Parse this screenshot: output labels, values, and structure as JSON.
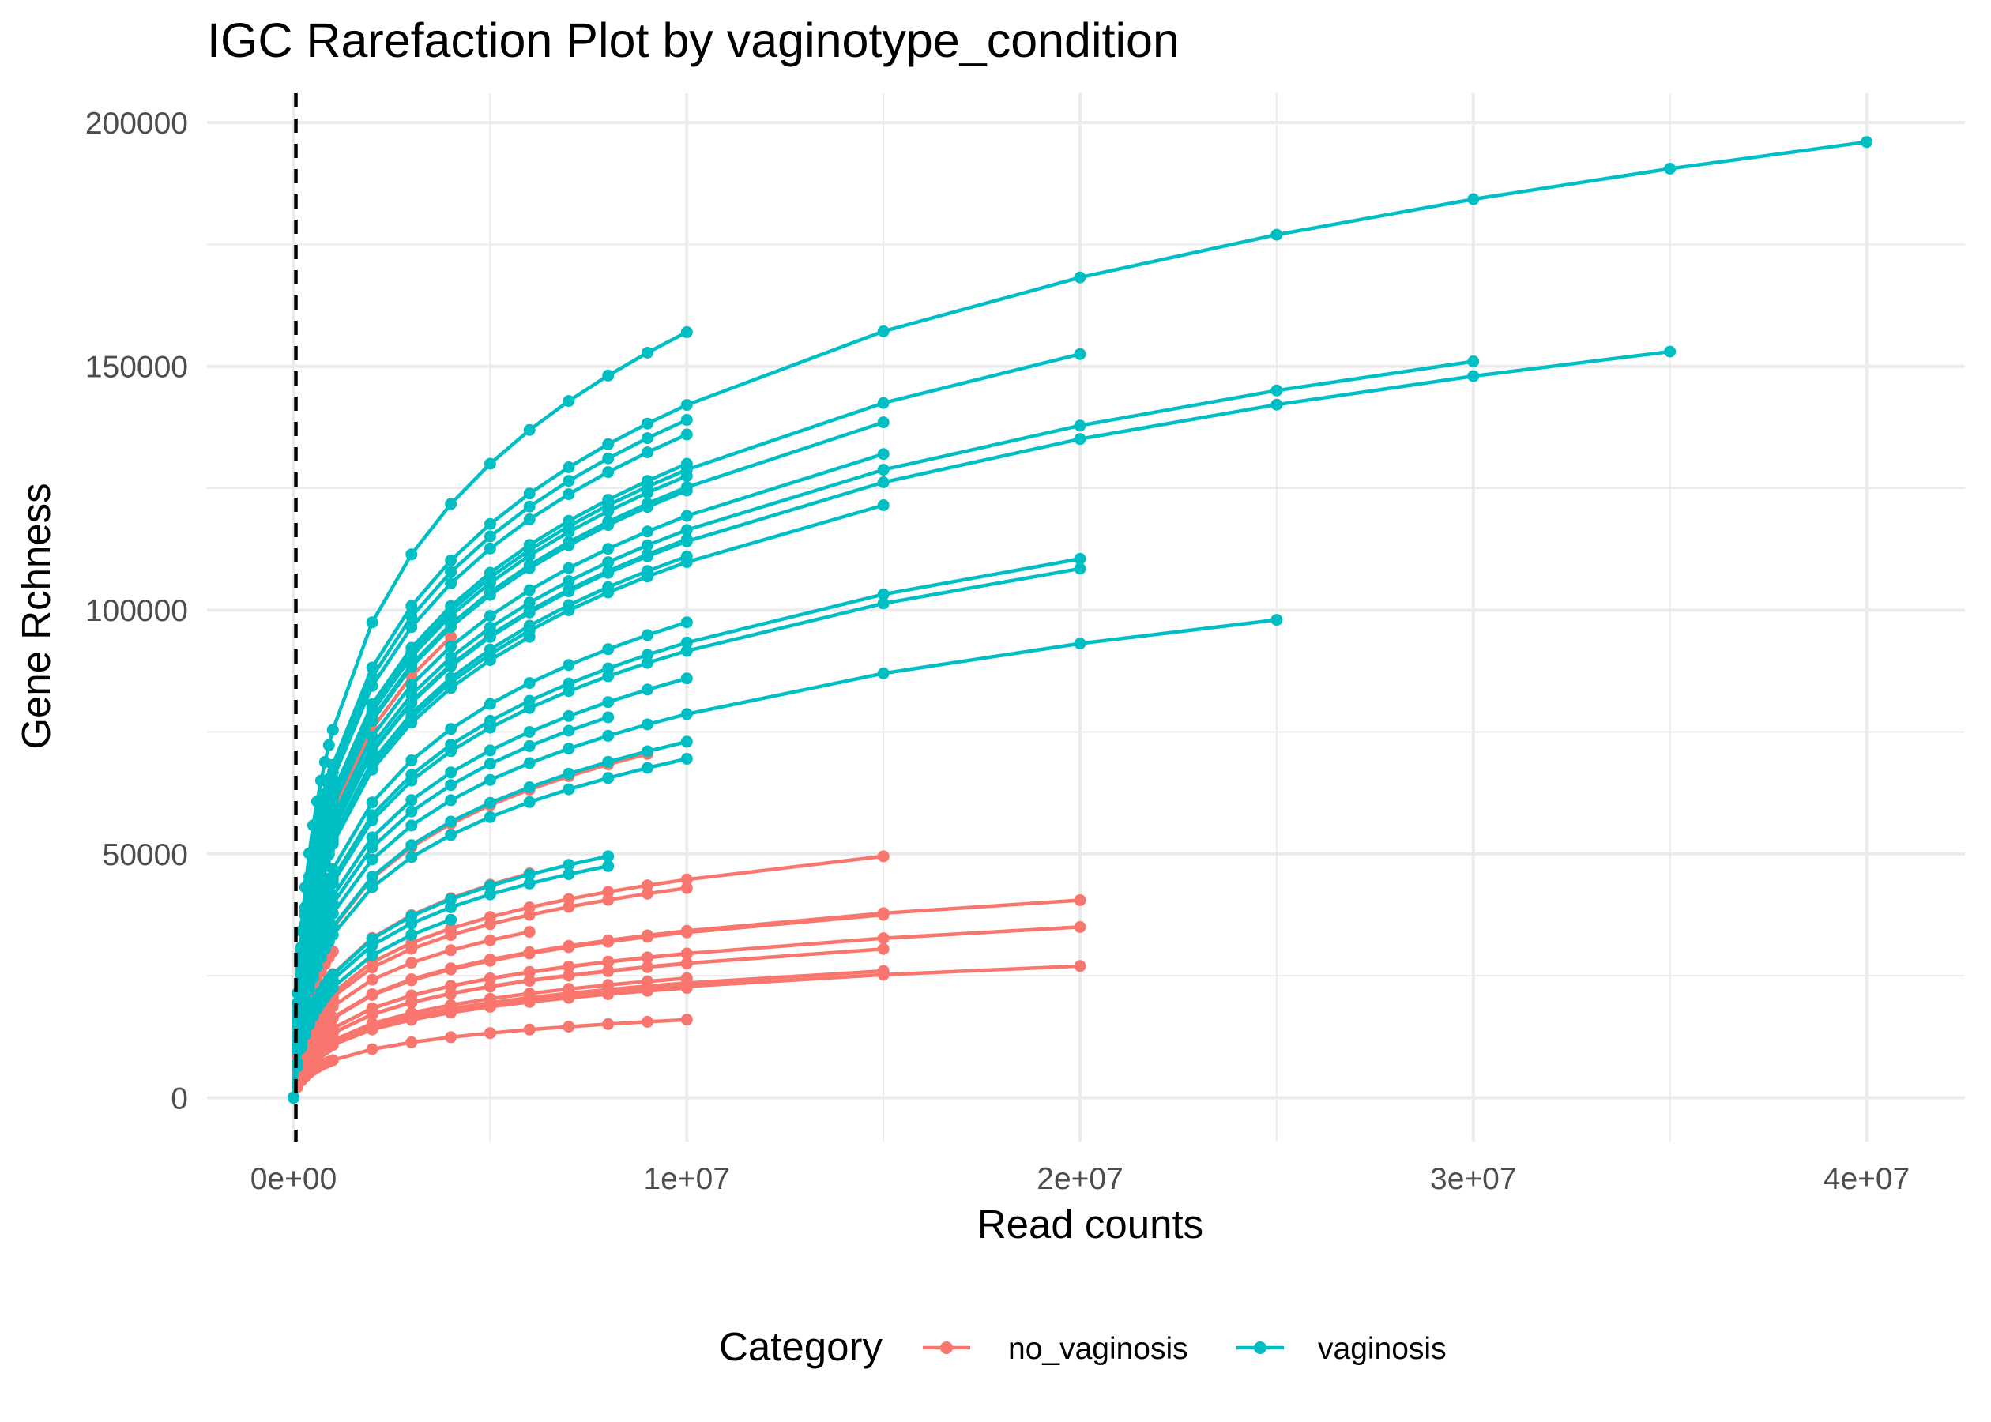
{
  "chart_data": {
    "type": "line",
    "title": "IGC Rarefaction Plot by vaginotype_condition",
    "xlabel": "Read counts",
    "ylabel": "Gene Rchness",
    "xlim": [
      -2200000,
      42500000
    ],
    "ylim": [
      -9000,
      206000
    ],
    "x_ticks": [
      0,
      10000000,
      20000000,
      30000000,
      40000000
    ],
    "x_tick_labels": [
      "0e+00",
      "1e+07",
      "2e+07",
      "3e+07",
      "4e+07"
    ],
    "y_ticks": [
      0,
      50000,
      100000,
      150000,
      200000
    ],
    "y_tick_labels": [
      "0",
      "50000",
      "100000",
      "150000",
      "200000"
    ],
    "grid": true,
    "vline_x": 0,
    "legend": {
      "title": "Category",
      "position": "bottom",
      "entries": [
        "no_vaginosis",
        "vaginosis"
      ]
    },
    "colors": {
      "no_vaginosis": "#F8766D",
      "vaginosis": "#00BFC4"
    },
    "x_steps": [
      0,
      100000,
      200000,
      300000,
      400000,
      500000,
      600000,
      700000,
      800000,
      900000,
      1000000,
      2000000,
      3000000,
      4000000,
      5000000,
      6000000,
      7000000,
      8000000,
      9000000,
      10000000,
      15000000,
      20000000,
      25000000,
      30000000,
      35000000,
      40000000
    ],
    "curves": [
      {
        "category": "vaginosis",
        "max_x": 40000000,
        "end_y": 196000
      },
      {
        "category": "vaginosis",
        "max_x": 10000000,
        "end_y": 157000
      },
      {
        "category": "vaginosis",
        "max_x": 35000000,
        "end_y": 153000
      },
      {
        "category": "vaginosis",
        "max_x": 30000000,
        "end_y": 151000
      },
      {
        "category": "vaginosis",
        "max_x": 20000000,
        "end_y": 152500
      },
      {
        "category": "vaginosis",
        "max_x": 15000000,
        "end_y": 138500
      },
      {
        "category": "vaginosis",
        "max_x": 15000000,
        "end_y": 132000
      },
      {
        "category": "vaginosis",
        "max_x": 10000000,
        "end_y": 139000
      },
      {
        "category": "vaginosis",
        "max_x": 10000000,
        "end_y": 136000
      },
      {
        "category": "vaginosis",
        "max_x": 10000000,
        "end_y": 130000
      },
      {
        "category": "vaginosis",
        "max_x": 10000000,
        "end_y": 127500
      },
      {
        "category": "vaginosis",
        "max_x": 10000000,
        "end_y": 124500
      },
      {
        "category": "vaginosis",
        "max_x": 15000000,
        "end_y": 121500
      },
      {
        "category": "vaginosis",
        "max_x": 10000000,
        "end_y": 114500
      },
      {
        "category": "vaginosis",
        "max_x": 10000000,
        "end_y": 111000
      },
      {
        "category": "vaginosis",
        "max_x": 20000000,
        "end_y": 110500
      },
      {
        "category": "vaginosis",
        "max_x": 20000000,
        "end_y": 108500
      },
      {
        "category": "vaginosis",
        "max_x": 25000000,
        "end_y": 98000
      },
      {
        "category": "vaginosis",
        "max_x": 10000000,
        "end_y": 97500
      },
      {
        "category": "vaginosis",
        "max_x": 6000000,
        "end_y": 94500
      },
      {
        "category": "vaginosis",
        "max_x": 10000000,
        "end_y": 86000
      },
      {
        "category": "vaginosis",
        "max_x": 8000000,
        "end_y": 78000
      },
      {
        "category": "vaginosis",
        "max_x": 10000000,
        "end_y": 73000
      },
      {
        "category": "vaginosis",
        "max_x": 10000000,
        "end_y": 69500
      },
      {
        "category": "vaginosis",
        "max_x": 8000000,
        "end_y": 49500
      },
      {
        "category": "vaginosis",
        "max_x": 8000000,
        "end_y": 47500
      },
      {
        "category": "vaginosis",
        "max_x": 4000000,
        "end_y": 36500
      },
      {
        "category": "no_vaginosis",
        "max_x": 4000000,
        "end_y": 94500
      },
      {
        "category": "no_vaginosis",
        "max_x": 9000000,
        "end_y": 70500
      },
      {
        "category": "no_vaginosis",
        "max_x": 15000000,
        "end_y": 49500
      },
      {
        "category": "no_vaginosis",
        "max_x": 6000000,
        "end_y": 46000
      },
      {
        "category": "no_vaginosis",
        "max_x": 10000000,
        "end_y": 43000
      },
      {
        "category": "no_vaginosis",
        "max_x": 20000000,
        "end_y": 40500
      },
      {
        "category": "no_vaginosis",
        "max_x": 6000000,
        "end_y": 34000
      },
      {
        "category": "no_vaginosis",
        "max_x": 15000000,
        "end_y": 37500
      },
      {
        "category": "no_vaginosis",
        "max_x": 20000000,
        "end_y": 35000
      },
      {
        "category": "no_vaginosis",
        "max_x": 15000000,
        "end_y": 30500
      },
      {
        "category": "no_vaginosis",
        "max_x": 10000000,
        "end_y": 29500
      },
      {
        "category": "no_vaginosis",
        "max_x": 10000000,
        "end_y": 27500
      },
      {
        "category": "no_vaginosis",
        "max_x": 20000000,
        "end_y": 27000
      },
      {
        "category": "no_vaginosis",
        "max_x": 15000000,
        "end_y": 26000
      },
      {
        "category": "no_vaginosis",
        "max_x": 10000000,
        "end_y": 24500
      },
      {
        "category": "no_vaginosis",
        "max_x": 10000000,
        "end_y": 22500
      },
      {
        "category": "no_vaginosis",
        "max_x": 10000000,
        "end_y": 16000
      },
      {
        "category": "no_vaginosis",
        "max_x": 1000000,
        "end_y": 30000
      },
      {
        "category": "no_vaginosis",
        "max_x": 1000000,
        "end_y": 20000
      },
      {
        "category": "no_vaginosis",
        "max_x": 1000000,
        "end_y": 12000
      }
    ]
  }
}
